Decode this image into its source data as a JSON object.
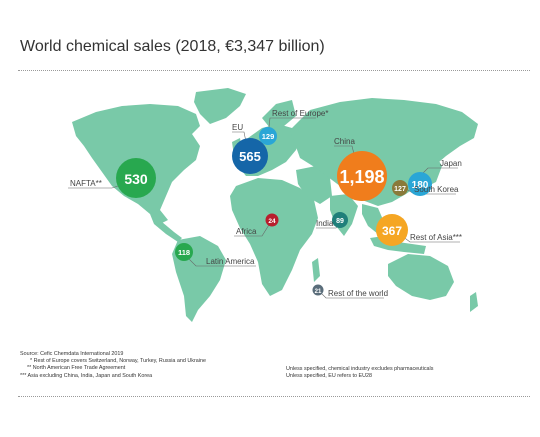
{
  "title": "World chemical sales (2018, €3,347 billion)",
  "colors": {
    "land": "#79c9a8",
    "nafta": "#28a84f",
    "eu": "#1566a8",
    "rest_of_europe": "#2aa6d6",
    "china": "#f07d1c",
    "japan": "#2aa6d6",
    "south_korea": "#8a7a3a",
    "india": "#1f7f7a",
    "africa": "#b81e2d",
    "latin_america": "#28a84f",
    "rest_of_asia": "#f5a623",
    "rest_of_world": "#5a6d7a"
  },
  "regions": {
    "nafta": {
      "label": "NAFTA**",
      "value": "530"
    },
    "eu": {
      "label": "EU",
      "value": "565"
    },
    "rest_of_europe": {
      "label": "Rest of Europe*",
      "value": "129"
    },
    "china": {
      "label": "China",
      "value": "1,198"
    },
    "japan": {
      "label": "Japan",
      "value": "180"
    },
    "south_korea": {
      "label": "South Korea",
      "value": "127"
    },
    "india": {
      "label": "India",
      "value": "89"
    },
    "africa": {
      "label": "Africa",
      "value": "24"
    },
    "latin_america": {
      "label": "Latin America",
      "value": "118"
    },
    "rest_of_asia": {
      "label": "Rest of Asia***",
      "value": "367"
    },
    "rest_of_world": {
      "label": "Rest of the world",
      "value": "21"
    }
  },
  "notes": {
    "source": "Source: Cefic Chemdata International 2019",
    "n1": "* Rest of Europe covers Switzerland, Norway, Turkey, Russia and Ukraine",
    "n2": "** North American Free Trade Agreement",
    "n3": "*** Asia excluding China, India, Japan and South Korea",
    "r1": "Unless specified, chemical industry excludes pharmaceuticals",
    "r2": "Unless specified, EU refers to EU28"
  }
}
